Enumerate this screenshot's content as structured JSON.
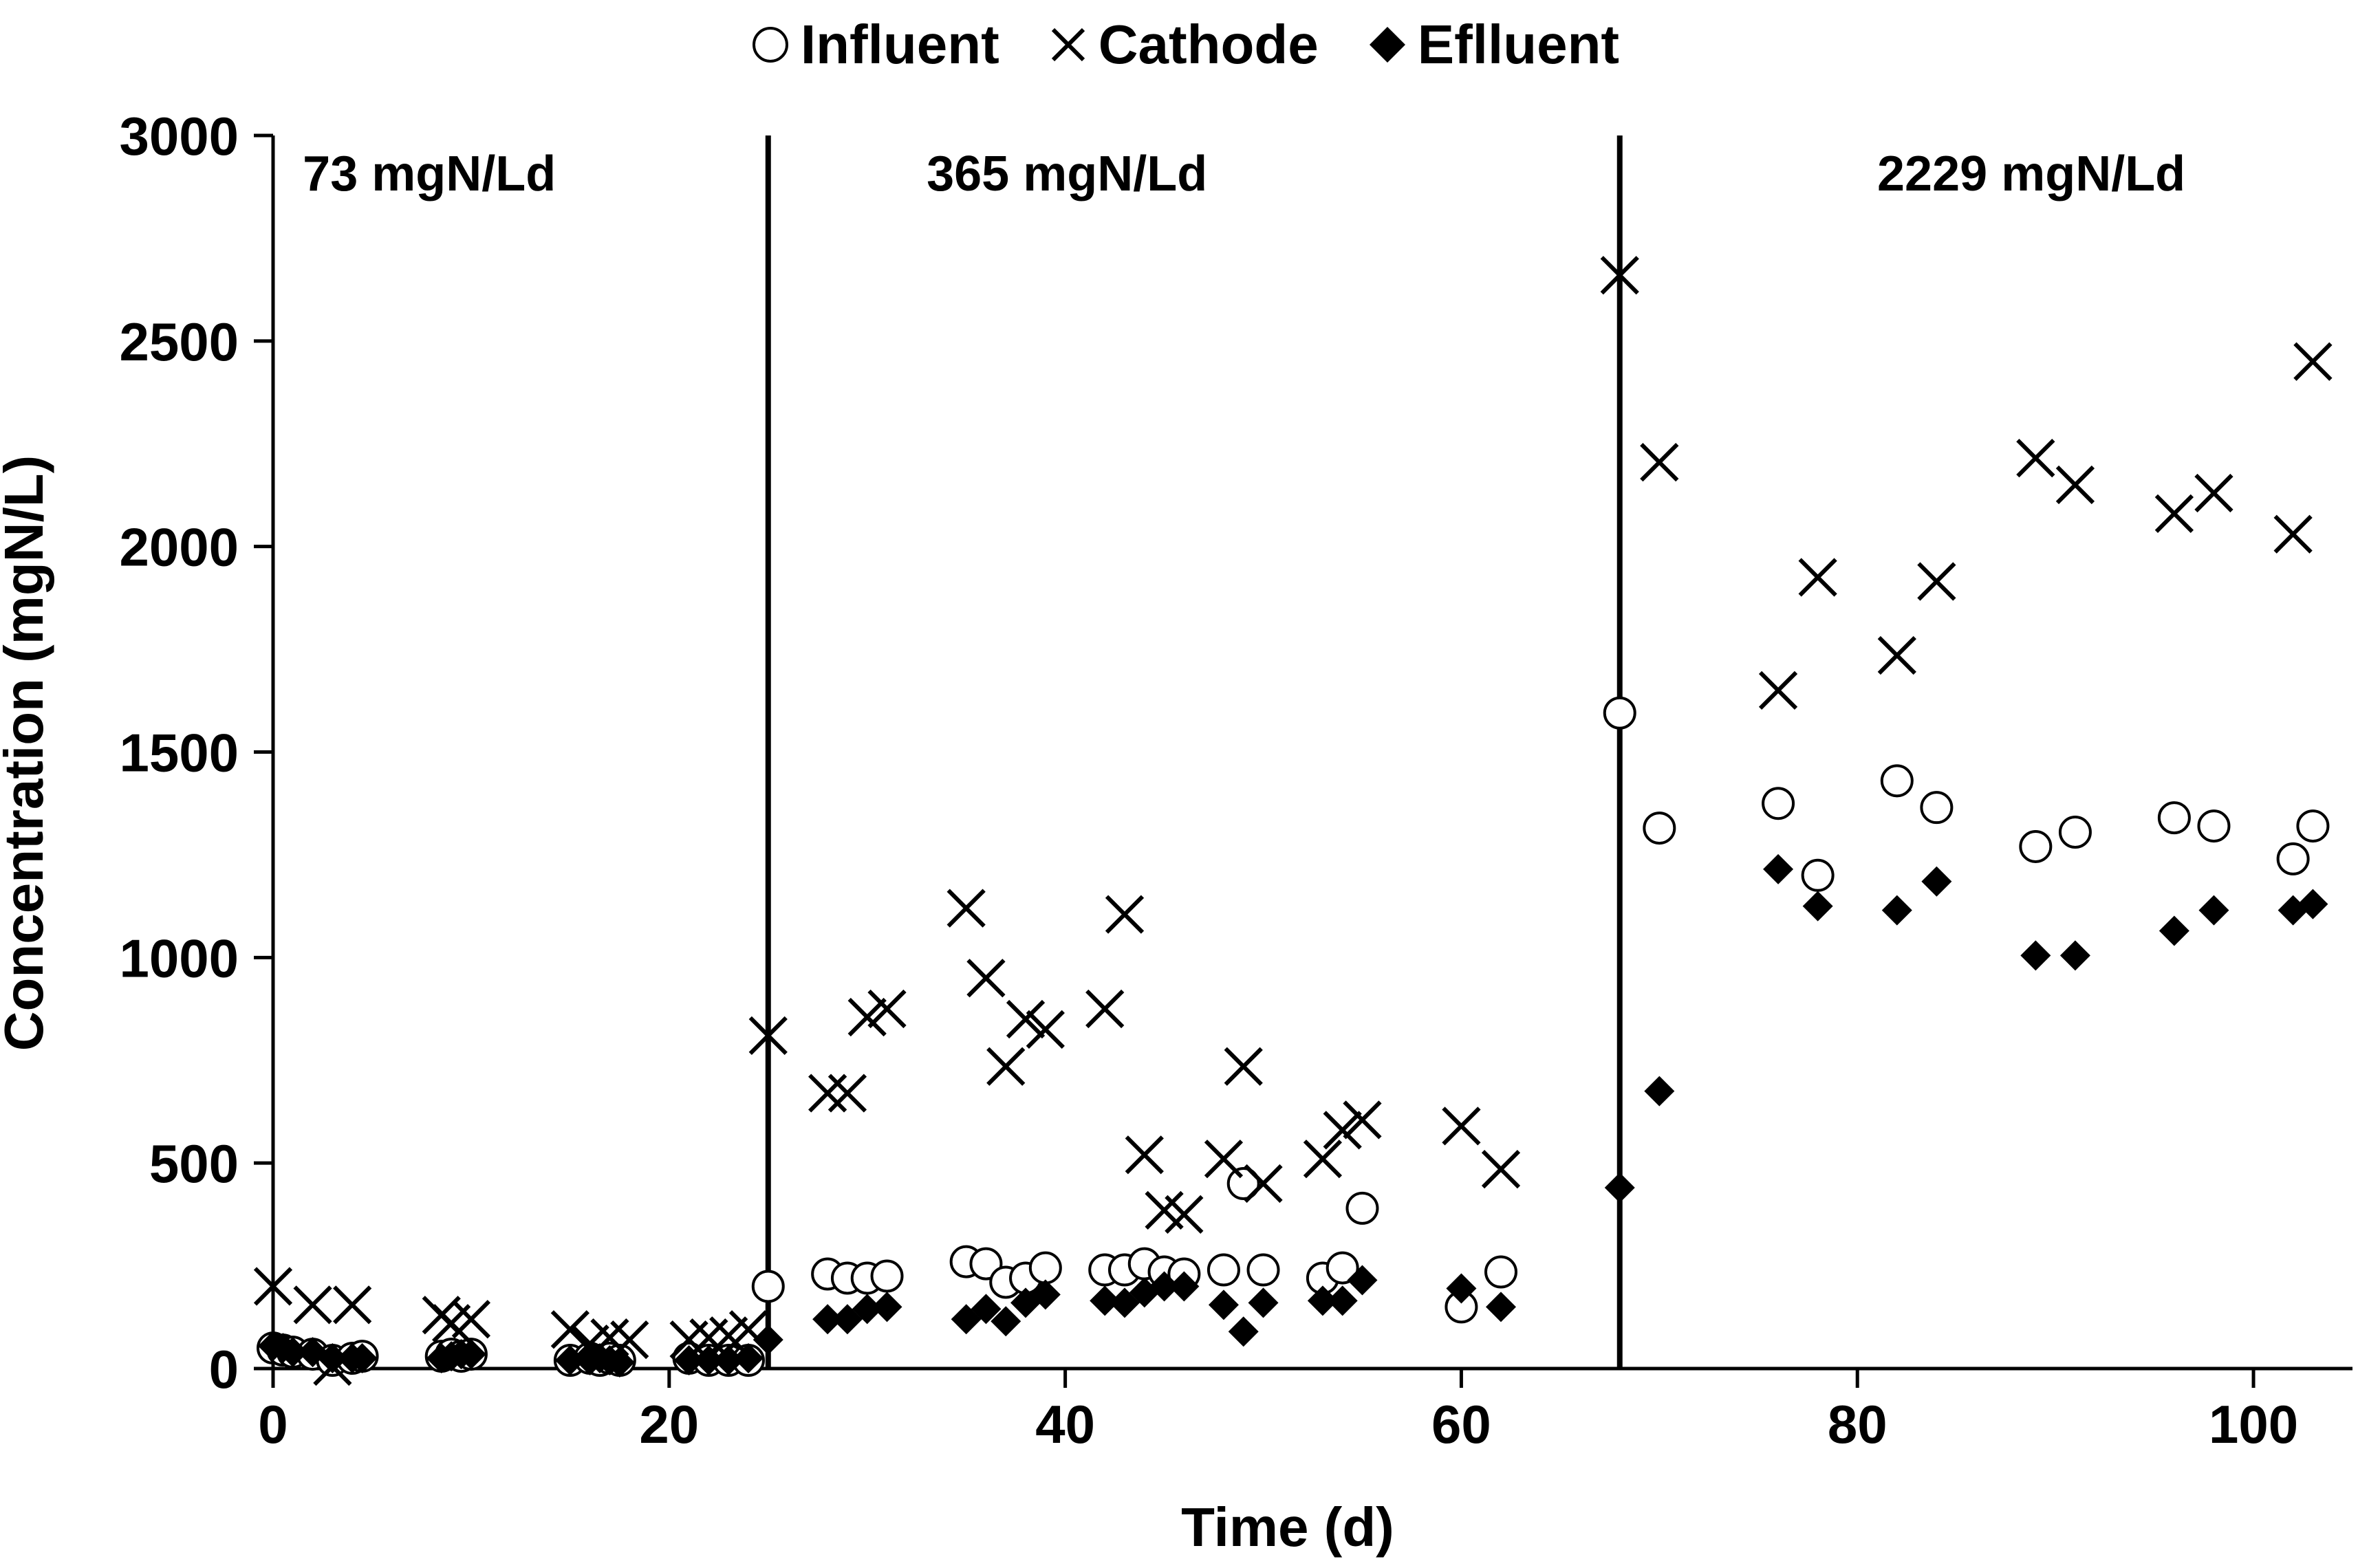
{
  "chart_data": {
    "type": "scatter",
    "title": "",
    "xlabel": "Time (d)",
    "ylabel": "Concentration (mgN/L)",
    "xlim": [
      0,
      105
    ],
    "ylim": [
      0,
      3000
    ],
    "xticks": [
      0,
      20,
      40,
      60,
      80,
      100
    ],
    "yticks": [
      0,
      500,
      1000,
      1500,
      2000,
      2500,
      3000
    ],
    "grid": false,
    "legend_position": "top-center",
    "phase_boundaries": [
      0,
      25,
      68
    ],
    "phase_labels": [
      {
        "label": "73 mgN/Ld",
        "x": 1.5
      },
      {
        "label": "365 mgN/Ld",
        "x": 33
      },
      {
        "label": "2229 mgN/Ld",
        "x": 81
      }
    ],
    "series": [
      {
        "name": "Influent",
        "marker": "open-circle",
        "points": [
          [
            0,
            50
          ],
          [
            0.5,
            45
          ],
          [
            1,
            40
          ],
          [
            2,
            35
          ],
          [
            3,
            20
          ],
          [
            4,
            25
          ],
          [
            4.5,
            30
          ],
          [
            8.5,
            30
          ],
          [
            9,
            35
          ],
          [
            9.5,
            30
          ],
          [
            10,
            35
          ],
          [
            15,
            20
          ],
          [
            16,
            25
          ],
          [
            16.5,
            20
          ],
          [
            17,
            25
          ],
          [
            17.5,
            20
          ],
          [
            21,
            25
          ],
          [
            22,
            20
          ],
          [
            23,
            20
          ],
          [
            24,
            20
          ],
          [
            25,
            200
          ],
          [
            28,
            230
          ],
          [
            29,
            220
          ],
          [
            30,
            220
          ],
          [
            31,
            225
          ],
          [
            35,
            260
          ],
          [
            36,
            255
          ],
          [
            37,
            210
          ],
          [
            38,
            220
          ],
          [
            39,
            245
          ],
          [
            42,
            240
          ],
          [
            43,
            240
          ],
          [
            44,
            255
          ],
          [
            45,
            235
          ],
          [
            46,
            230
          ],
          [
            48,
            240
          ],
          [
            49,
            450
          ],
          [
            50,
            240
          ],
          [
            53,
            220
          ],
          [
            54,
            245
          ],
          [
            55,
            390
          ],
          [
            60,
            150
          ],
          [
            62,
            235
          ],
          [
            68,
            1595
          ],
          [
            70,
            1315
          ],
          [
            76,
            1375
          ],
          [
            78,
            1200
          ],
          [
            82,
            1430
          ],
          [
            84,
            1365
          ],
          [
            89,
            1270
          ],
          [
            91,
            1305
          ],
          [
            96,
            1340
          ],
          [
            98,
            1320
          ],
          [
            102,
            1240
          ],
          [
            103,
            1320
          ]
        ]
      },
      {
        "name": "Cathode",
        "marker": "x",
        "points": [
          [
            0,
            200
          ],
          [
            2,
            155
          ],
          [
            3,
            5
          ],
          [
            4,
            155
          ],
          [
            8.5,
            130
          ],
          [
            9,
            110
          ],
          [
            10,
            120
          ],
          [
            15,
            95
          ],
          [
            16,
            60
          ],
          [
            17,
            75
          ],
          [
            18,
            70
          ],
          [
            21,
            70
          ],
          [
            22,
            75
          ],
          [
            23,
            80
          ],
          [
            24,
            95
          ],
          [
            25,
            810
          ],
          [
            28,
            670
          ],
          [
            29,
            670
          ],
          [
            30,
            855
          ],
          [
            31,
            875
          ],
          [
            35,
            1120
          ],
          [
            36,
            950
          ],
          [
            37,
            735
          ],
          [
            38,
            850
          ],
          [
            39,
            825
          ],
          [
            42,
            875
          ],
          [
            43,
            1105
          ],
          [
            44,
            520
          ],
          [
            45,
            385
          ],
          [
            46,
            375
          ],
          [
            48,
            510
          ],
          [
            49,
            735
          ],
          [
            50,
            450
          ],
          [
            53,
            510
          ],
          [
            54,
            580
          ],
          [
            55,
            605
          ],
          [
            60,
            590
          ],
          [
            62,
            485
          ],
          [
            68,
            2660
          ],
          [
            70,
            2205
          ],
          [
            76,
            1650
          ],
          [
            78,
            1925
          ],
          [
            82,
            1735
          ],
          [
            84,
            1915
          ],
          [
            89,
            2215
          ],
          [
            91,
            2150
          ],
          [
            96,
            2080
          ],
          [
            98,
            2130
          ],
          [
            102,
            2030
          ],
          [
            103,
            2450
          ]
        ]
      },
      {
        "name": "Eflluent",
        "marker": "filled-diamond",
        "points": [
          [
            0,
            55
          ],
          [
            0.5,
            50
          ],
          [
            1,
            40
          ],
          [
            2,
            40
          ],
          [
            3,
            25
          ],
          [
            4,
            25
          ],
          [
            4.5,
            25
          ],
          [
            8.5,
            25
          ],
          [
            9,
            30
          ],
          [
            9.5,
            35
          ],
          [
            10,
            35
          ],
          [
            15,
            20
          ],
          [
            16,
            20
          ],
          [
            16.5,
            25
          ],
          [
            17,
            20
          ],
          [
            17.5,
            15
          ],
          [
            21,
            20
          ],
          [
            22,
            20
          ],
          [
            23,
            20
          ],
          [
            24,
            25
          ],
          [
            25,
            70
          ],
          [
            28,
            120
          ],
          [
            29,
            120
          ],
          [
            30,
            145
          ],
          [
            31,
            150
          ],
          [
            35,
            120
          ],
          [
            36,
            145
          ],
          [
            37,
            115
          ],
          [
            38,
            160
          ],
          [
            39,
            180
          ],
          [
            42,
            165
          ],
          [
            43,
            160
          ],
          [
            44,
            185
          ],
          [
            45,
            200
          ],
          [
            46,
            200
          ],
          [
            48,
            155
          ],
          [
            49,
            90
          ],
          [
            50,
            160
          ],
          [
            53,
            165
          ],
          [
            54,
            165
          ],
          [
            55,
            215
          ],
          [
            60,
            195
          ],
          [
            62,
            150
          ],
          [
            68,
            440
          ],
          [
            70,
            675
          ],
          [
            76,
            1215
          ],
          [
            78,
            1125
          ],
          [
            82,
            1115
          ],
          [
            84,
            1185
          ],
          [
            89,
            1005
          ],
          [
            91,
            1005
          ],
          [
            96,
            1065
          ],
          [
            98,
            1115
          ],
          [
            102,
            1115
          ],
          [
            103,
            1130
          ]
        ]
      }
    ]
  }
}
